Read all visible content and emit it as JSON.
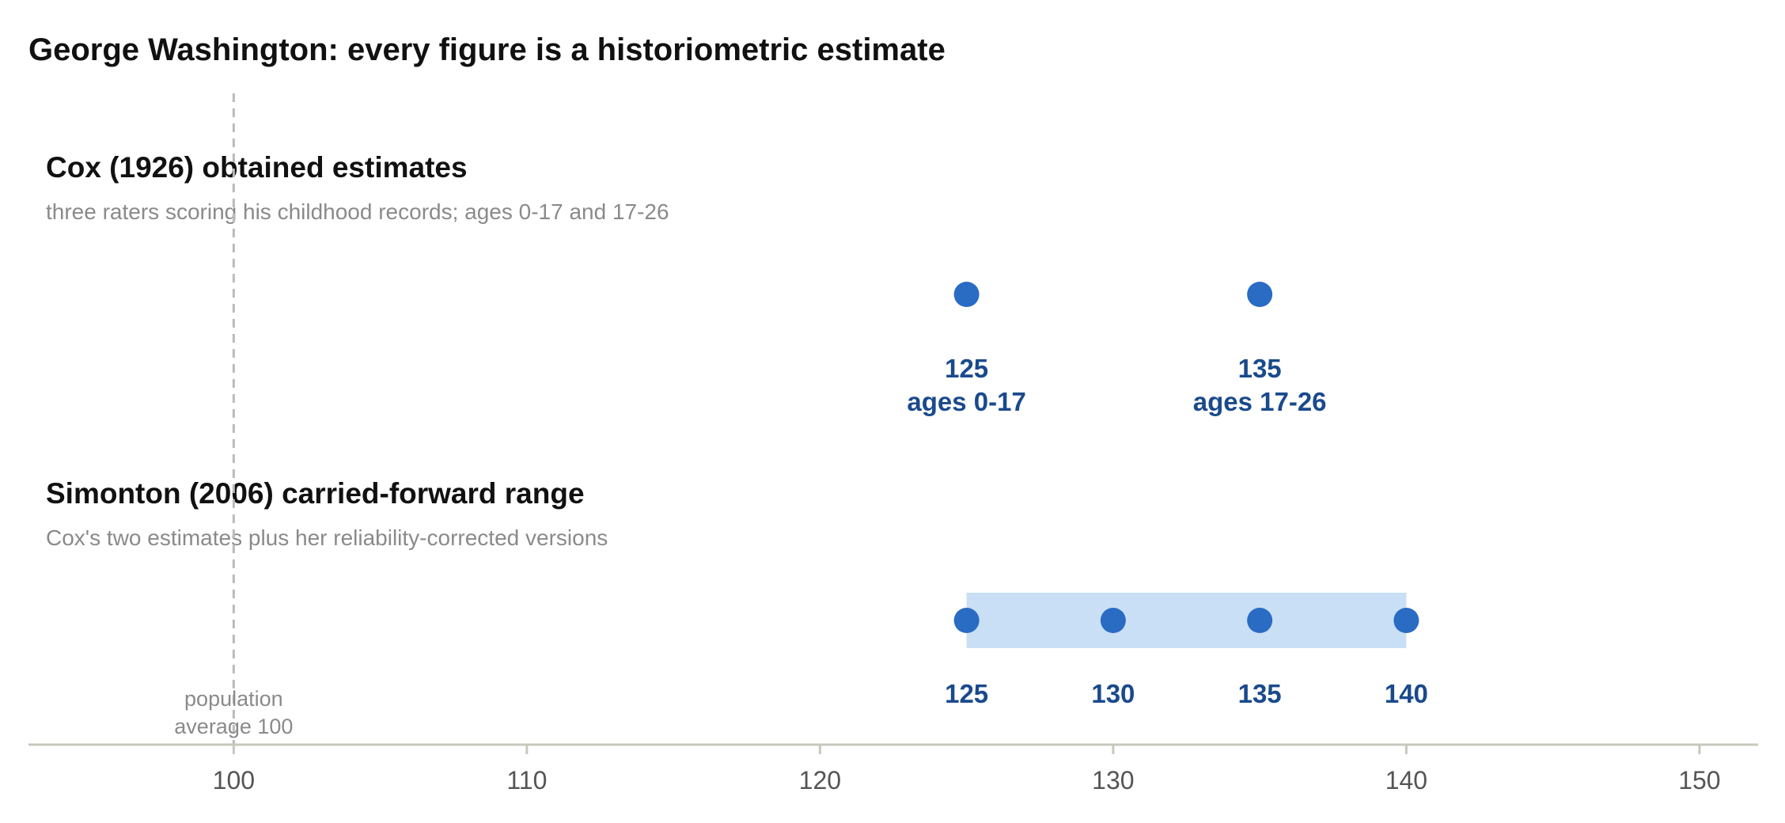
{
  "chart_data": {
    "type": "scatter",
    "title": "George Washington: every figure is a historiometric estimate",
    "xlim": [
      93,
      152
    ],
    "x_ticks": [
      "100",
      "110",
      "120",
      "130",
      "140",
      "150"
    ],
    "reference_line": {
      "x": 100,
      "label_line1": "population",
      "label_line2": "average 100"
    },
    "panels": [
      {
        "title": "Cox (1926) obtained estimates",
        "subtitle": "three raters scoring his childhood records; ages 0-17 and 17-26",
        "points": [
          {
            "x": 125,
            "label": "125",
            "sublabel": "ages 0-17"
          },
          {
            "x": 135,
            "label": "135",
            "sublabel": "ages 17-26"
          }
        ],
        "range": null
      },
      {
        "title": "Simonton (2006) carried-forward range",
        "subtitle": "Cox's two estimates plus her reliability-corrected versions",
        "points": [
          {
            "x": 125,
            "label": "125"
          },
          {
            "x": 130,
            "label": "130"
          },
          {
            "x": 135,
            "label": "135"
          },
          {
            "x": 140,
            "label": "140"
          }
        ],
        "range": [
          125,
          140
        ]
      }
    ],
    "colors": {
      "point": "#2a6bc4",
      "label": "#1a4a8c",
      "range_band": "#c8dff5",
      "reference_line": "#bbbbbb",
      "axis": "#c8c8bd"
    }
  }
}
